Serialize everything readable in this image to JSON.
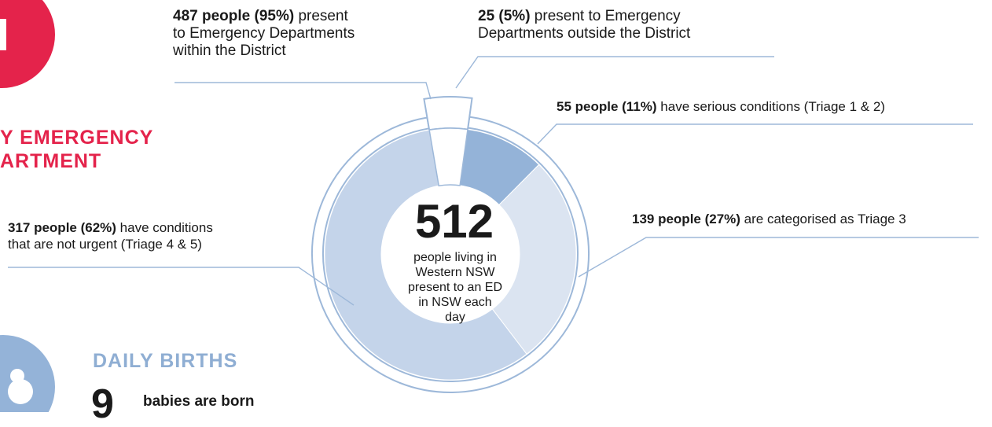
{
  "emergency": {
    "heading_line1": "Y EMERGENCY",
    "heading_line2": "ARTMENT",
    "icon": "medical-cross-icon",
    "accent_color": "#e4234b"
  },
  "annotations": {
    "within_bold": "487 people (95%)",
    "within_rest1": " present",
    "within_line2": "to Emergency Departments",
    "within_line3": "within the District",
    "outside_bold": "25 (5%)",
    "outside_rest1": " present to Emergency",
    "outside_line2": "Departments outside the District",
    "serious_bold": "55 people (11%)",
    "serious_rest": " have serious conditions (Triage 1 & 2)",
    "triage3_bold": "139 people (27%)",
    "triage3_rest": " are categorised as Triage 3",
    "nonurgent_bold": "317 people (62%)",
    "nonurgent_rest1": " have conditions",
    "nonurgent_line2": "that are not urgent (Triage 4 & 5)"
  },
  "center": {
    "value": "512",
    "line1": "people living in",
    "line2": "Western NSW",
    "line3": "present to an ED",
    "line4": "in NSW each",
    "line5": "day"
  },
  "births": {
    "heading": "DAILY BIRTHS",
    "number": "9",
    "text": "babies are born",
    "icon": "baby-icon",
    "accent_color": "#8faed3"
  },
  "chart_data": [
    {
      "type": "pie",
      "ring": "outer",
      "categories": [
        "Within the District",
        "Outside the District"
      ],
      "values": [
        487,
        25
      ],
      "percent": [
        95,
        5
      ],
      "colors": [
        "#ffffff",
        "#ffffff"
      ]
    },
    {
      "type": "pie",
      "ring": "inner",
      "categories": [
        "Triage 1 & 2",
        "Triage 3",
        "Triage 4 & 5"
      ],
      "values": [
        55,
        139,
        317
      ],
      "percent": [
        11,
        27,
        62
      ],
      "colors": [
        "#94b3d8",
        "#dbe4f1",
        "#c4d4ea"
      ]
    }
  ]
}
